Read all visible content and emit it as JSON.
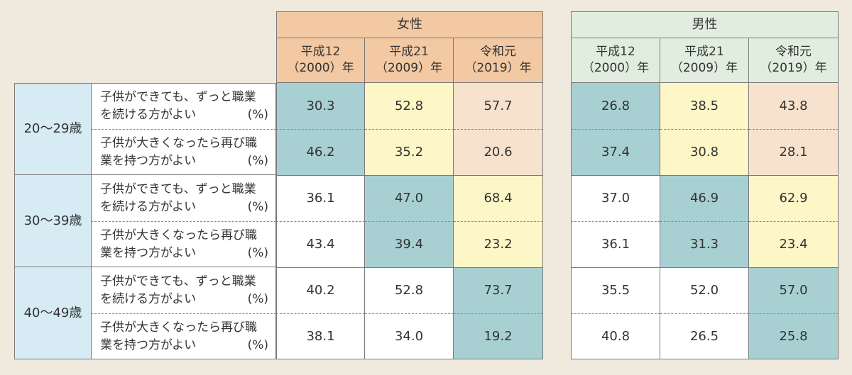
{
  "chart_data": {
    "type": "table",
    "tables": [
      {
        "header": "女性",
        "columns": [
          {
            "line1": "平成12",
            "line2": "（2000）年"
          },
          {
            "line1": "平成21",
            "line2": "（2009）年"
          },
          {
            "line1": "令和元",
            "line2": "（2019）年"
          }
        ],
        "rows": [
          {
            "values": [
              "30.3",
              "52.8",
              "57.7"
            ]
          },
          {
            "values": [
              "46.2",
              "35.2",
              "20.6"
            ]
          },
          {
            "values": [
              "36.1",
              "47.0",
              "68.4"
            ]
          },
          {
            "values": [
              "43.4",
              "39.4",
              "23.2"
            ]
          },
          {
            "values": [
              "40.2",
              "52.8",
              "73.7"
            ]
          },
          {
            "values": [
              "38.1",
              "34.0",
              "19.2"
            ]
          }
        ]
      },
      {
        "header": "男性",
        "columns": [
          {
            "line1": "平成12",
            "line2": "（2000）年"
          },
          {
            "line1": "平成21",
            "line2": "（2009）年"
          },
          {
            "line1": "令和元",
            "line2": "（2019）年"
          }
        ],
        "rows": [
          {
            "values": [
              "26.8",
              "38.5",
              "43.8"
            ]
          },
          {
            "values": [
              "37.4",
              "30.8",
              "28.1"
            ]
          },
          {
            "values": [
              "37.0",
              "46.9",
              "62.9"
            ]
          },
          {
            "values": [
              "36.1",
              "31.3",
              "23.4"
            ]
          },
          {
            "values": [
              "35.5",
              "52.0",
              "57.0"
            ]
          },
          {
            "values": [
              "40.8",
              "26.5",
              "25.8"
            ]
          }
        ]
      }
    ],
    "age_groups": [
      "20～29歳",
      "30～39歳",
      "40～49歳"
    ],
    "questions": [
      {
        "line1": "子供ができても、ずっと職業",
        "line2": "を続ける方がよい",
        "unit": "(%)"
      },
      {
        "line1": "子供が大きくなったら再び職",
        "line2": "業を持つ方がよい",
        "unit": "(%)"
      }
    ]
  },
  "colors": {
    "background": "#efe9de",
    "female_header": "#f2c9a2",
    "male_header": "#e1eedf",
    "age_cell": "#d6ebf4",
    "highlight_teal": "#a8d0d2",
    "highlight_yellow": "#fdf6c7",
    "highlight_peach": "#f7e2cd"
  },
  "highlight_pattern": [
    [
      "a",
      "b",
      "c"
    ],
    [
      "a",
      "b",
      "c"
    ],
    [
      "n",
      "a",
      "b"
    ],
    [
      "n",
      "a",
      "b"
    ],
    [
      "n",
      "n",
      "a"
    ],
    [
      "n",
      "n",
      "a"
    ]
  ]
}
